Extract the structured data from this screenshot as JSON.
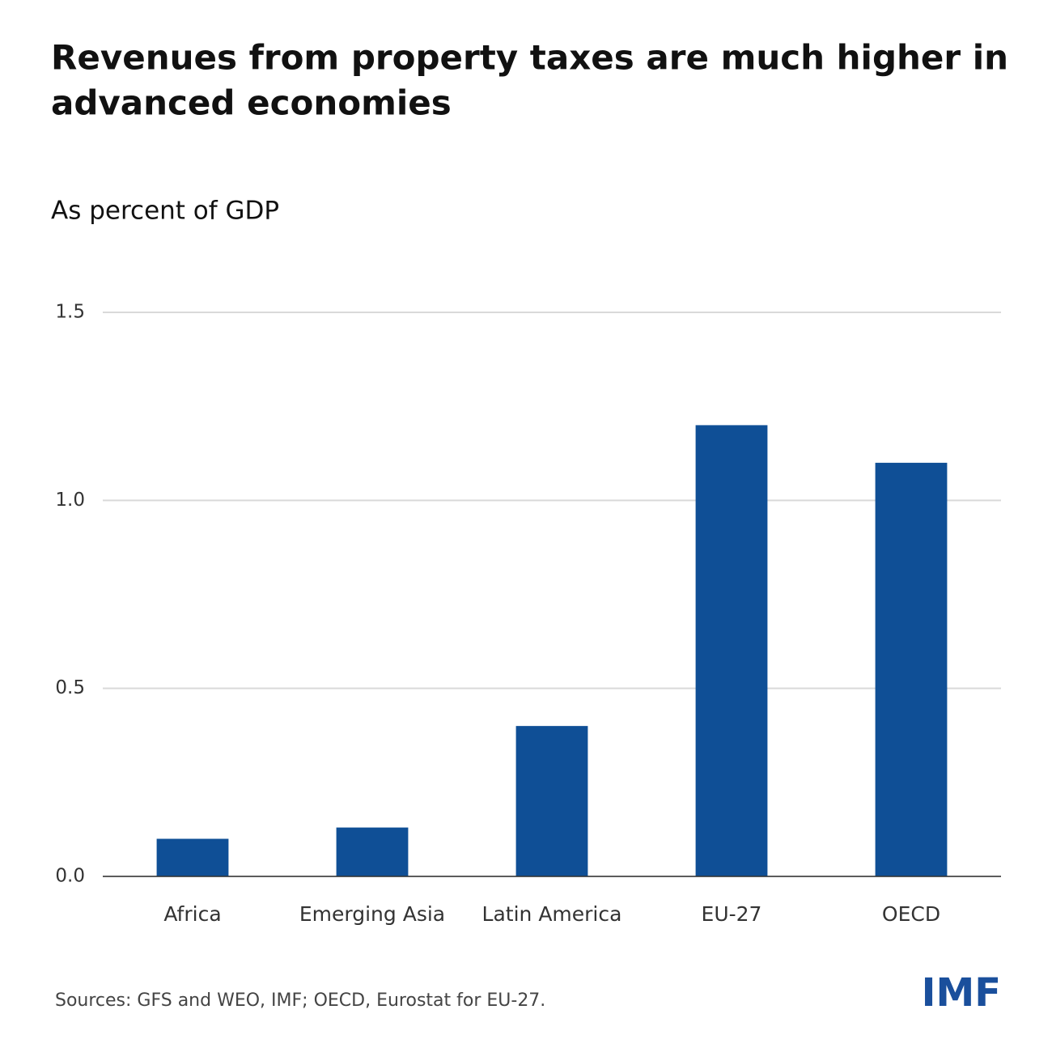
{
  "chart_data": {
    "type": "bar",
    "title_lines": [
      "Revenues from property taxes are much higher in",
      "advanced economies"
    ],
    "subtitle": "As percent of GDP",
    "categories": [
      "Africa",
      "Emerging Asia",
      "Latin America",
      "EU-27",
      "OECD"
    ],
    "values": [
      0.1,
      0.13,
      0.4,
      1.2,
      1.1
    ],
    "color": "#0f4f96",
    "ylim": [
      0,
      1.5
    ],
    "yticks": [
      {
        "value": 0,
        "label": "0.0"
      },
      0.5,
      {
        "value": 1,
        "label": "1.0"
      },
      1.5
    ],
    "grid": true,
    "source": "Sources: GFS and WEO, IMF; OECD, Eurostat for EU-27.",
    "logo": "IMF"
  }
}
